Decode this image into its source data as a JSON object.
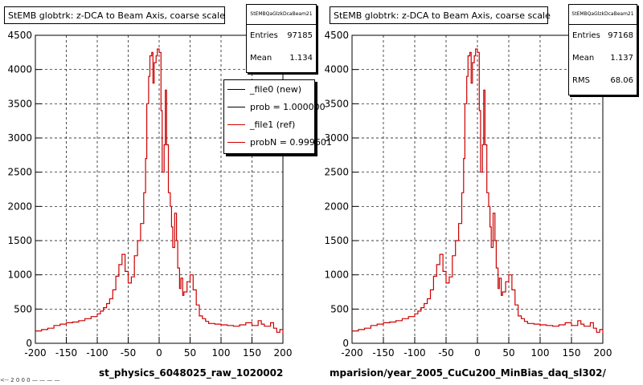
{
  "chart_data": [
    {
      "type": "line",
      "title": "StEMB globtrk: z-DCA to Beam Axis, coarse scale",
      "xlabel": "st_physics_6048025_raw_1020002",
      "xlim": [
        -200,
        200
      ],
      "ylim": [
        0,
        4500
      ],
      "xticks": [
        "-200",
        "-150",
        "-100",
        "-50",
        "0",
        "50",
        "100",
        "150",
        "200"
      ],
      "yticks": [
        "0",
        "500",
        "1000",
        "1500",
        "2000",
        "2500",
        "3000",
        "3500",
        "4000",
        "4500"
      ],
      "grid": true,
      "stats": {
        "name": "StEMBQaGlzkDcaBeam21",
        "rows": [
          {
            "label": "Entries",
            "value": "97185"
          },
          {
            "label": "Mean",
            "value": "1.134"
          }
        ]
      },
      "legend": [
        {
          "label": "_file0 (new)",
          "color": "#000000"
        },
        {
          "label": "prob = 1.000000",
          "color": "#000000"
        },
        {
          "label": "_file1 (ref)",
          "color": "#cc0000"
        },
        {
          "label": "probN = 0.999601",
          "color": "#cc0000"
        }
      ],
      "series": [
        {
          "color": "#cc0000",
          "x": [
            -200,
            -190,
            -180,
            -170,
            -160,
            -150,
            -140,
            -130,
            -120,
            -110,
            -100,
            -95,
            -90,
            -85,
            -80,
            -75,
            -70,
            -65,
            -60,
            -55,
            -50,
            -45,
            -40,
            -35,
            -30,
            -25,
            -22,
            -20,
            -17,
            -15,
            -12,
            -10,
            -8,
            -5,
            -3,
            0,
            3,
            5,
            8,
            10,
            12,
            15,
            18,
            20,
            22,
            25,
            28,
            30,
            33,
            35,
            38,
            40,
            45,
            50,
            55,
            60,
            65,
            70,
            75,
            80,
            90,
            100,
            110,
            120,
            130,
            140,
            150,
            160,
            165,
            170,
            180,
            185,
            190,
            195,
            200
          ],
          "y": [
            180,
            200,
            220,
            260,
            280,
            300,
            310,
            330,
            360,
            390,
            430,
            470,
            520,
            580,
            650,
            780,
            980,
            1150,
            1300,
            1050,
            880,
            970,
            1280,
            1500,
            1750,
            2200,
            2700,
            3500,
            3900,
            4200,
            4250,
            3800,
            4100,
            4200,
            4300,
            4250,
            3400,
            2500,
            2900,
            3700,
            2900,
            2200,
            2000,
            1700,
            1400,
            1900,
            1500,
            1100,
            800,
            950,
            700,
            750,
            900,
            1000,
            780,
            560,
            400,
            360,
            320,
            290,
            280,
            270,
            260,
            250,
            270,
            300,
            260,
            330,
            280,
            250,
            300,
            220,
            160,
            200,
            150
          ]
        }
      ]
    },
    {
      "type": "line",
      "title": "StEMB globtrk: z-DCA to Beam Axis, coarse scale",
      "xlabel": "mparision/year_2005_CuCu200_MinBias_daq_sl302/",
      "xlim": [
        -200,
        200
      ],
      "ylim": [
        0,
        4500
      ],
      "xticks": [
        "-200",
        "-150",
        "-100",
        "-50",
        "0",
        "50",
        "100",
        "150",
        "200"
      ],
      "yticks": [
        "0",
        "500",
        "1000",
        "1500",
        "2000",
        "2500",
        "3000",
        "3500",
        "4000",
        "4500"
      ],
      "grid": true,
      "stats": {
        "name": "StEMBQaGlzkDcaBeam21",
        "rows": [
          {
            "label": "Entries",
            "value": "97168"
          },
          {
            "label": "Mean",
            "value": "1.137"
          },
          {
            "label": "RMS",
            "value": "68.06"
          }
        ]
      },
      "series": [
        {
          "color": "#cc0000",
          "x": [
            -200,
            -190,
            -180,
            -170,
            -160,
            -150,
            -140,
            -130,
            -120,
            -110,
            -100,
            -95,
            -90,
            -85,
            -80,
            -75,
            -70,
            -65,
            -60,
            -55,
            -50,
            -45,
            -40,
            -35,
            -30,
            -25,
            -22,
            -20,
            -17,
            -15,
            -12,
            -10,
            -8,
            -5,
            -3,
            0,
            3,
            5,
            8,
            10,
            12,
            15,
            18,
            20,
            22,
            25,
            28,
            30,
            33,
            35,
            38,
            40,
            45,
            50,
            55,
            60,
            65,
            70,
            75,
            80,
            90,
            100,
            110,
            120,
            130,
            140,
            150,
            160,
            165,
            170,
            180,
            185,
            190,
            195,
            200
          ],
          "y": [
            180,
            200,
            220,
            260,
            280,
            300,
            310,
            330,
            360,
            390,
            430,
            470,
            520,
            580,
            650,
            780,
            980,
            1150,
            1300,
            1050,
            880,
            970,
            1280,
            1500,
            1750,
            2200,
            2700,
            3500,
            3900,
            4200,
            4250,
            3800,
            4100,
            4200,
            4300,
            4250,
            3400,
            2500,
            2900,
            3700,
            2900,
            2200,
            2000,
            1700,
            1400,
            1900,
            1500,
            1100,
            800,
            950,
            700,
            750,
            900,
            1000,
            780,
            560,
            400,
            360,
            320,
            290,
            280,
            270,
            260,
            250,
            270,
            300,
            260,
            330,
            280,
            250,
            300,
            220,
            160,
            200,
            150
          ]
        }
      ]
    }
  ],
  "footer": "<-- 2 0 0 0 — — — —"
}
